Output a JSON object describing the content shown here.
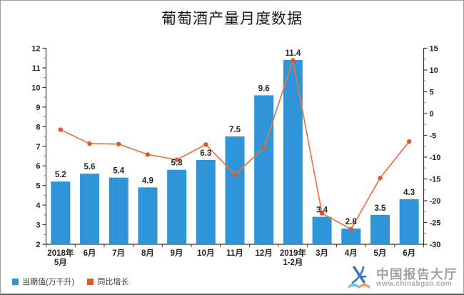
{
  "chart_data": {
    "type": "combo",
    "title": "葡萄酒产量月度数据",
    "categories": [
      "2018年\n5月",
      "6月",
      "7月",
      "8月",
      "9月",
      "10月",
      "11月",
      "12月",
      "2019年\n1-2月",
      "3月",
      "4月",
      "5月",
      "6月"
    ],
    "series": [
      {
        "name": "当期值(万千升)",
        "type": "bar",
        "axis": "left",
        "color": "#2E96D8",
        "values": [
          5.2,
          5.6,
          5.4,
          4.9,
          5.8,
          6.3,
          7.5,
          9.6,
          11.4,
          3.4,
          2.8,
          3.5,
          4.3
        ],
        "data_labels": true
      },
      {
        "name": "同比增长",
        "type": "line",
        "axis": "right",
        "color": "#E8743F",
        "marker_color": "#DC5B28",
        "values": [
          -3.7,
          -6.9,
          -7.0,
          -9.4,
          -10.6,
          -7.1,
          -14.0,
          -7.9,
          12.2,
          -22.9,
          -26.5,
          -14.8,
          -6.4
        ],
        "data_labels": false
      }
    ],
    "left_axis": {
      "min": 2,
      "max": 12,
      "major_step": 1,
      "minor_step": 0.5
    },
    "right_axis": {
      "min": -30,
      "max": 15,
      "major_step": 5,
      "minor_step": 2.5
    },
    "grid": false,
    "legend_position": "bottom-left",
    "axis_color": "#333333",
    "minor_tick_color": "#cc4b37",
    "label_color": "#262626"
  },
  "watermark": {
    "brand": "中国报告大厅",
    "url": "www.chinabgao.com",
    "icon": "chinabgao-logo",
    "brand_color": "#a2a2a2",
    "icon_blue": "#2f77c0",
    "icon_lightblue": "#74c3e6",
    "icon_orange": "#f59a62"
  }
}
